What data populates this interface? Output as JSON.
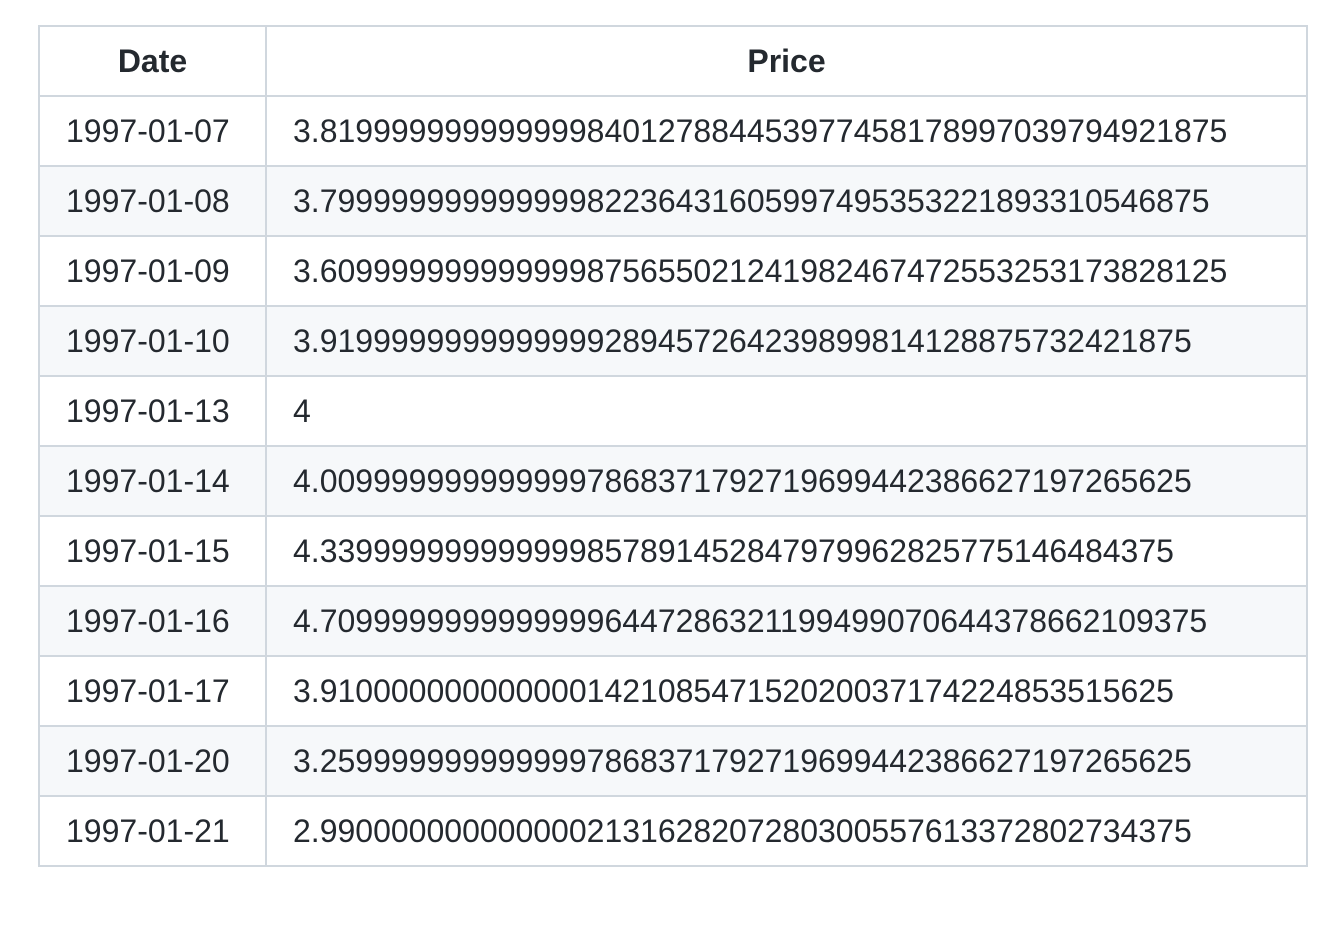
{
  "table": {
    "headers": [
      "Date",
      "Price"
    ],
    "rows": [
      [
        "1997-01-07",
        "3.819999999999999840127884453977458178997039794921875"
      ],
      [
        "1997-01-08",
        "3.79999999999999982236431605997495353221893310546875"
      ],
      [
        "1997-01-09",
        "3.609999999999999875655021241982467472553253173828125"
      ],
      [
        "1997-01-10",
        "3.9199999999999999289457264239899814128875732421875"
      ],
      [
        "1997-01-13",
        "4"
      ],
      [
        "1997-01-14",
        "4.0099999999999997868371792719699442386627197265625"
      ],
      [
        "1997-01-15",
        "4.339999999999999857891452847979962825775146484375"
      ],
      [
        "1997-01-16",
        "4.70999999999999996447286321199499070644378662109375"
      ],
      [
        "1997-01-17",
        "3.910000000000000142108547152020037174224853515625"
      ],
      [
        "1997-01-20",
        "3.2599999999999997868371792719699442386627197265625"
      ],
      [
        "1997-01-21",
        "2.9900000000000002131628207280300557613372802734375"
      ]
    ]
  }
}
